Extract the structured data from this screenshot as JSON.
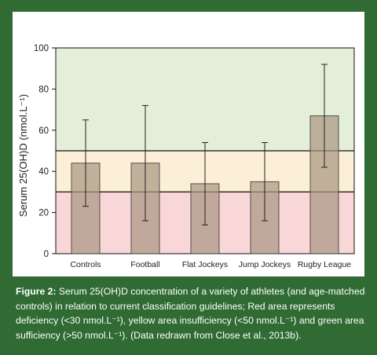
{
  "figure": {
    "caption_label": "Figure 2:",
    "caption_text": " Serum 25(OH)D concentration of a variety of athletes (and age-matched controls) in relation to current classification guidelines; Red area represents deficiency (<30 nmol.L⁻¹), yellow area insufficiency (<50 nmol.L⁻¹) and green area sufficiency (>50 nmol.L⁻¹). (Data redrawn from Close et al., 2013b)."
  },
  "colors": {
    "background": "#2f6b32",
    "band_deficiency": "#f9d6d7",
    "band_insufficiency": "#fcefd7",
    "band_sufficiency": "#e4efd9",
    "bar_fill": "#a89680",
    "bar_fill_opacity": 0.7
  },
  "chart_data": {
    "type": "bar",
    "categories": [
      "Controls",
      "Football",
      "Flat Jockeys",
      "Jump Jockeys",
      "Rugby League"
    ],
    "values": [
      44,
      44,
      34,
      35,
      67
    ],
    "error_low": [
      23,
      16,
      14,
      16,
      42
    ],
    "error_high": [
      65,
      72,
      54,
      54,
      92
    ],
    "ylabel": "Serum 25(OH)D (nmol.L⁻¹)",
    "ylim": [
      0,
      100
    ],
    "yticks": [
      0,
      20,
      40,
      60,
      80,
      100
    ],
    "bands": [
      {
        "from": 0,
        "to": 30
      },
      {
        "from": 30,
        "to": 50
      },
      {
        "from": 50,
        "to": 100
      }
    ]
  }
}
